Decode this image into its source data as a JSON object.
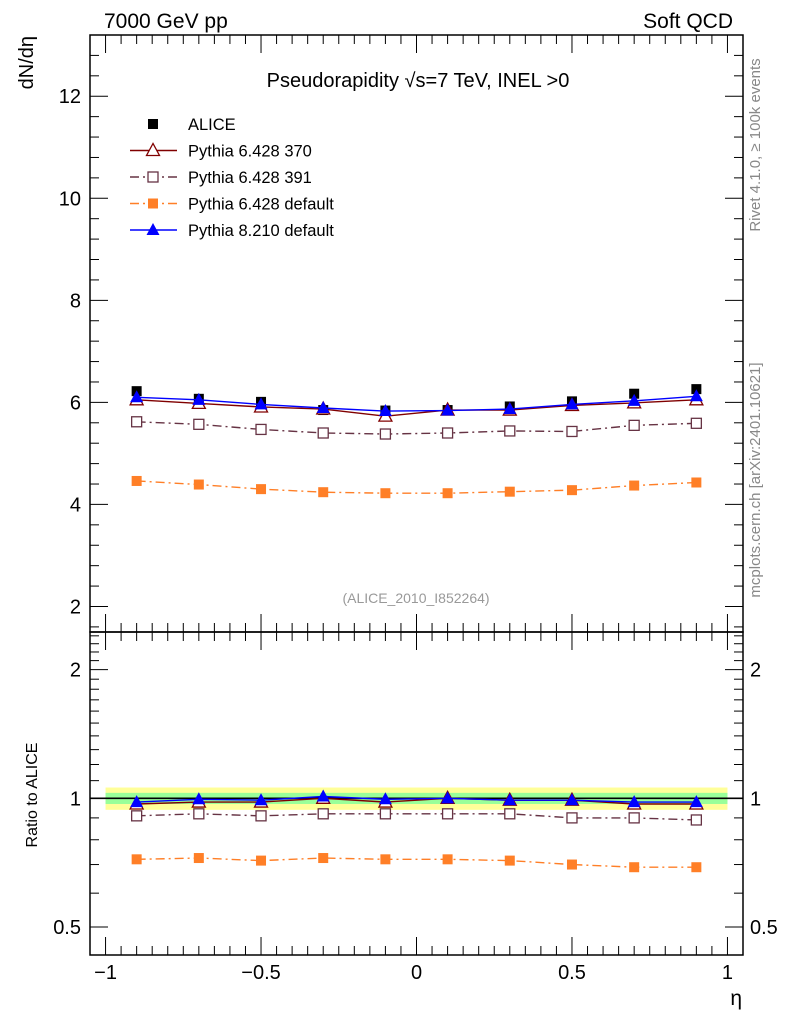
{
  "header": {
    "left": "7000 GeV pp",
    "right": "Soft QCD",
    "side_top": "Rivet 4.1.0, ≥ 100k events",
    "side_bottom": "mcplots.cern.ch [arXiv:2401.10621]"
  },
  "colors": {
    "alice": "#000000",
    "p370": "#800000",
    "p391": "#663344",
    "p6def": "#ff7f27",
    "p8def": "#0000ff",
    "band_outer": "#ffff99",
    "band_inner": "#99ff99"
  },
  "chart_data": [
    {
      "type": "line",
      "title": "Pseudorapidity √s=7 TeV, INEL >0",
      "annotation": "(ALICE_2010_I852264)",
      "xlabel": "η",
      "ylabel": "dN/dη",
      "xlim": [
        -1.05,
        1.05
      ],
      "ylim": [
        1.5,
        13.2
      ],
      "yticks": [
        2,
        4,
        6,
        8,
        10,
        12
      ],
      "x": [
        -0.9,
        -0.7,
        -0.5,
        -0.3,
        -0.1,
        0.1,
        0.3,
        0.5,
        0.7,
        0.9
      ],
      "series": [
        {
          "key": "alice",
          "name": "ALICE",
          "marker": "square-filled",
          "line": "none",
          "values": [
            6.22,
            6.07,
            6.01,
            5.85,
            5.84,
            5.85,
            5.92,
            6.02,
            6.17,
            6.26
          ]
        },
        {
          "key": "p370",
          "name": "Pythia 6.428 370",
          "marker": "triangle-open",
          "line": "solid",
          "values": [
            6.05,
            5.98,
            5.91,
            5.87,
            5.73,
            5.85,
            5.85,
            5.94,
            5.99,
            6.05
          ]
        },
        {
          "key": "p391",
          "name": "Pythia 6.428 391",
          "marker": "square-open",
          "line": "dashdot",
          "values": [
            5.62,
            5.57,
            5.47,
            5.4,
            5.38,
            5.4,
            5.44,
            5.43,
            5.55,
            5.59
          ]
        },
        {
          "key": "p6def",
          "name": "Pythia 6.428 default",
          "marker": "square-filled",
          "line": "dashdot",
          "values": [
            4.46,
            4.39,
            4.3,
            4.24,
            4.22,
            4.22,
            4.25,
            4.28,
            4.37,
            4.43
          ]
        },
        {
          "key": "p8def",
          "name": "Pythia 8.210 default",
          "marker": "triangle-filled",
          "line": "solid",
          "values": [
            6.1,
            6.05,
            5.96,
            5.89,
            5.83,
            5.84,
            5.87,
            5.96,
            6.03,
            6.12
          ]
        }
      ]
    },
    {
      "type": "line",
      "title": "",
      "xlabel": "η",
      "ylabel": "Ratio to ALICE",
      "xlim": [
        -1.05,
        1.05
      ],
      "ylim": [
        0.43,
        2.45
      ],
      "yscale": "log",
      "yticks": [
        0.5,
        1,
        2
      ],
      "ytick_labels": [
        "0.5",
        "1",
        "2"
      ],
      "xticks": [
        -1,
        -0.5,
        0,
        0.5,
        1
      ],
      "xtick_labels": [
        "−1",
        "−0.5",
        "0",
        "0.5",
        "1"
      ],
      "x": [
        -0.9,
        -0.7,
        -0.5,
        -0.3,
        -0.1,
        0.1,
        0.3,
        0.5,
        0.7,
        0.9
      ],
      "reference_band": {
        "outer": [
          0.94,
          1.06
        ],
        "inner": [
          0.97,
          1.03
        ]
      },
      "series": [
        {
          "key": "p370",
          "values": [
            0.97,
            0.98,
            0.98,
            1.0,
            0.98,
            1.0,
            0.99,
            0.99,
            0.97,
            0.97
          ]
        },
        {
          "key": "p391",
          "values": [
            0.91,
            0.92,
            0.91,
            0.92,
            0.92,
            0.92,
            0.92,
            0.9,
            0.9,
            0.89
          ]
        },
        {
          "key": "p6def",
          "values": [
            0.72,
            0.725,
            0.715,
            0.725,
            0.72,
            0.72,
            0.715,
            0.7,
            0.69,
            0.69
          ]
        },
        {
          "key": "p8def",
          "values": [
            0.98,
            0.995,
            0.99,
            1.01,
            0.995,
            1.0,
            0.99,
            0.99,
            0.98,
            0.98
          ]
        }
      ]
    }
  ]
}
